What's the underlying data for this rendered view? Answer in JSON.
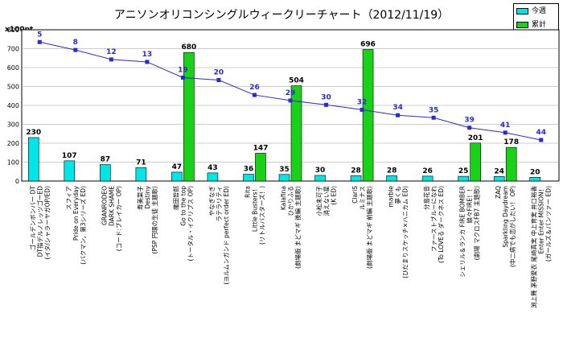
{
  "title": "アニソンオリコンシングルウィークリーチャート（2012/11/19）",
  "unit_label": "x100pt",
  "legend": {
    "this_week": "今週",
    "total": "累計",
    "rank": "順位"
  },
  "colors": {
    "this_week": "#00e5e5",
    "total": "#19d119",
    "rank": "#2a2ad0"
  },
  "chart_data": {
    "type": "bar",
    "title": "アニソンオリコンシングルウィークリーチャート（2012/11/19）",
    "ylabel": "x100pt",
    "ylim": [
      0,
      800
    ],
    "yticks": [
      0,
      100,
      200,
      300,
      400,
      500,
      600,
      700,
      800
    ],
    "grid": true,
    "legend_position": "top-right",
    "categories": [
      "ゴールデンボンバー DT\nDT指デルノレッツゴーED\n(イタ/シャラーヤガOP/ED)",
      "スフィア\nPride on Everyday\n(バクマン。第3シリーズ ED)",
      "GRANRODEO\nDARK SHAME\n(コード:ブレイカー OP)",
      "寿美菜子\nDestiny\n(PSP 円環の生徒 主題歌)",
      "織田哲郎\nGo to the top\n(トータル・イクリプス OP)",
      "やなぎなぎ\nラテラリティ\n(ヨルムンガンド perfect order ED)",
      "Rita\nLittle Busters！\n(リトルバスターズ！)",
      "Kalafina\nひかりふる\n(劇場版 まどマギ 後編 主題歌)",
      "小松未可子\n消えない星\n(K ED)",
      "ClariS\nルミナス\n(劇場版 まどマギ 前編 主題歌)",
      "marble\n夢くも\n(ひだまりスケッチ×ハニカム ED)",
      "分島花音\nファーストブルーになれ\n(To LOVEる ダークネス ED)",
      "シェリル＆ランカ FIRE BOMBER\n娘々FIRE！！\n(劇場 マクロスFB7 主題歌)",
      "ZAQ\nSparkling Daydream\n(中二病でも恋がしたい！ OP)",
      "渕上舞 茅野愛衣 尾崎真実 中上育実 井口裕香\nEnter Enter MISSION！\n(ガールズ＆パンツァー ED)"
    ],
    "series": [
      {
        "name": "今週",
        "type": "bar",
        "values": [
          230,
          107,
          87,
          71,
          47,
          43,
          36,
          35,
          30,
          28,
          28,
          26,
          25,
          24,
          20
        ]
      },
      {
        "name": "累計",
        "type": "bar",
        "values": [
          null,
          null,
          null,
          null,
          680,
          null,
          147,
          504,
          null,
          696,
          null,
          null,
          201,
          178,
          null
        ]
      },
      {
        "name": "順位",
        "type": "line",
        "values": [
          5,
          8,
          12,
          13,
          19,
          20,
          26,
          29,
          30,
          32,
          34,
          35,
          39,
          41,
          44
        ],
        "plotted_values": [
          735,
          693,
          643,
          630,
          547,
          534,
          455,
          426,
          403,
          377,
          348,
          335,
          282,
          256,
          217
        ]
      }
    ]
  }
}
